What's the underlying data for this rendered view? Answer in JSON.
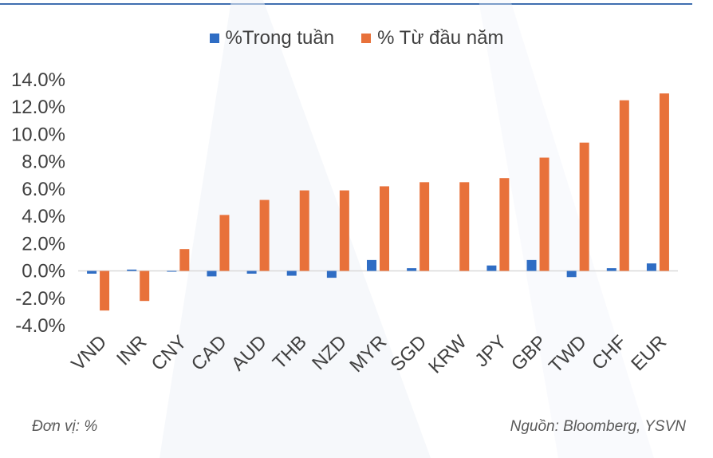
{
  "chart_data": {
    "type": "bar",
    "categories": [
      "VND",
      "INR",
      "CNY",
      "CAD",
      "AUD",
      "THB",
      "NZD",
      "MYR",
      "SGD",
      "KRW",
      "JPY",
      "GBP",
      "TWD",
      "CHF",
      "EUR"
    ],
    "series": [
      {
        "name": "%Trong tuần",
        "color": "#2f6dc4",
        "values": [
          -0.2,
          0.1,
          -0.05,
          -0.4,
          -0.2,
          -0.35,
          -0.5,
          0.8,
          0.2,
          0.0,
          0.4,
          0.8,
          -0.45,
          0.2,
          0.55
        ]
      },
      {
        "name": "% Từ đầu năm",
        "color": "#e8713a",
        "values": [
          -2.9,
          -2.2,
          1.6,
          4.1,
          5.2,
          5.9,
          5.9,
          6.2,
          6.5,
          6.5,
          6.8,
          8.3,
          9.4,
          12.5,
          13.0
        ]
      }
    ],
    "yticks": [
      14,
      12,
      10,
      8,
      6,
      4,
      2,
      0,
      -2,
      -4
    ],
    "ytick_labels": [
      "14.0%",
      "12.0%",
      "10.0%",
      "8.0%",
      "6.0%",
      "4.0%",
      "2.0%",
      "0.0%",
      "-2.0%",
      "-4.0%"
    ],
    "ylim": [
      -4,
      14
    ],
    "legend_position": "top-center",
    "grid": false
  },
  "footer": {
    "unit": "Đơn vị: %",
    "source": "Nguồn: Bloomberg, YSVN"
  }
}
